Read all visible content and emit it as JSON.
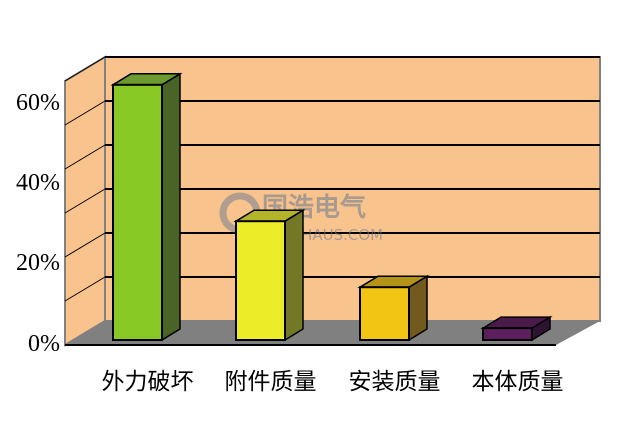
{
  "chart_data": {
    "type": "bar",
    "style": "3d-column",
    "categories": [
      "外力破坏",
      "附件质量",
      "安装质量",
      "本体质量"
    ],
    "values": [
      58,
      27,
      12,
      2.7
    ],
    "unit": "%",
    "ylim": [
      0,
      60
    ],
    "yticks": [
      "0%",
      "20%",
      "40%",
      "60%"
    ],
    "ytick_values": [
      0,
      20,
      40,
      60
    ],
    "gridlines": [
      10,
      20,
      30,
      40,
      50,
      60
    ],
    "grid": true,
    "title": "",
    "xlabel": "",
    "ylabel": "",
    "colors": {
      "wall": "#f8c38c",
      "floor": "#808080",
      "bars": [
        {
          "front": "#88c926",
          "side": "#4a6427",
          "top": "#6a9a30"
        },
        {
          "front": "#ecec28",
          "side": "#727825",
          "top": "#b4b428"
        },
        {
          "front": "#f2c414",
          "side": "#725a1e",
          "top": "#b49418"
        },
        {
          "front": "#5c1f5e",
          "side": "#2e1432",
          "top": "#4a1a4a"
        }
      ]
    }
  },
  "watermark": {
    "text": "国浩电气",
    "sub": "INGOHAUS.COM"
  }
}
